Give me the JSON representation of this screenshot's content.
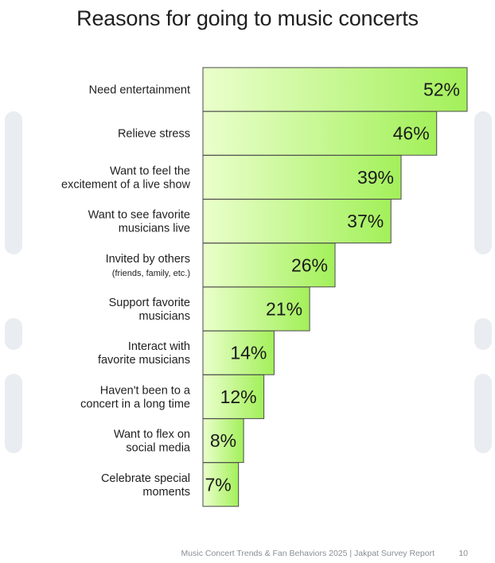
{
  "chart_data": {
    "type": "bar",
    "orientation": "horizontal",
    "title": "Reasons for going to music concerts",
    "categories": [
      [
        "Need entertainment"
      ],
      [
        "Relieve stress"
      ],
      [
        "Want to feel the",
        "excitement of a live show"
      ],
      [
        "Want to see favorite",
        "musicians live"
      ],
      [
        "Invited by others",
        "(friends, family, etc.)"
      ],
      [
        "Support favorite",
        "musicians"
      ],
      [
        "Interact with",
        "favorite musicians"
      ],
      [
        "Haven't been to a",
        "concert in a long time"
      ],
      [
        "Want to flex on",
        "social media"
      ],
      [
        "Celebrate special",
        "moments"
      ]
    ],
    "values": [
      52,
      46,
      39,
      37,
      26,
      21,
      14,
      12,
      8,
      7
    ],
    "value_labels": [
      "52%",
      "46%",
      "39%",
      "37%",
      "26%",
      "21%",
      "14%",
      "12%",
      "8%",
      "7%"
    ],
    "unit": "%",
    "gradient_colors": {
      "light": "#eaffcc",
      "dark": "#a3f05a"
    },
    "bar_border_color": "#4a4a4a"
  },
  "footer": {
    "source": "Music Concert Trends & Fan Behaviors 2025 | Jakpat Survey Report",
    "page_number": "10"
  }
}
